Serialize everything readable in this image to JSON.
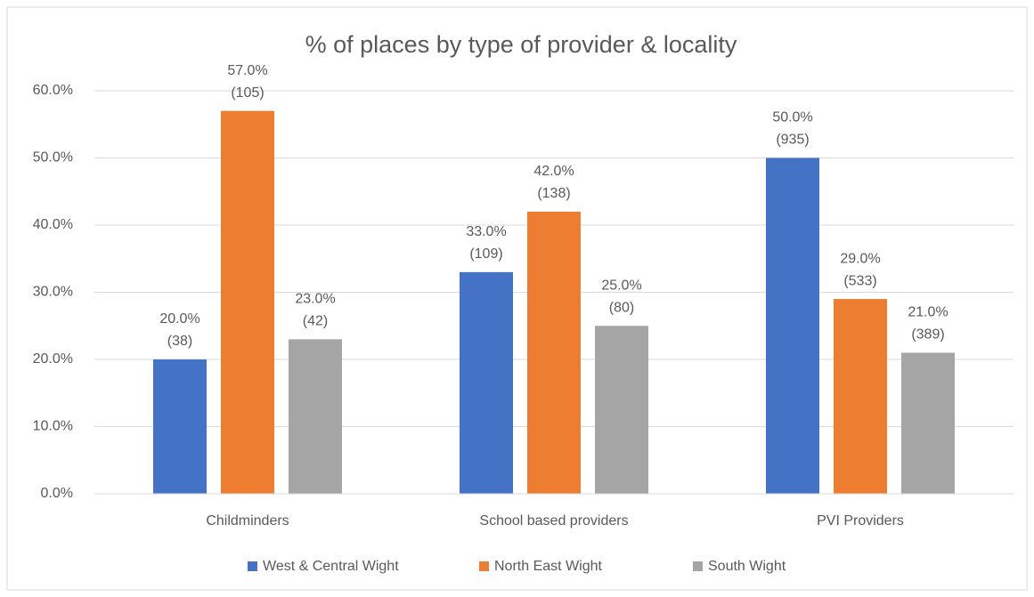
{
  "chart_data": {
    "type": "bar",
    "title": "% of places by type of provider & locality",
    "categories": [
      "Childminders",
      "School based providers",
      "PVI Providers"
    ],
    "series": [
      {
        "name": "West & Central Wight",
        "color": "#4472c4",
        "values": [
          20,
          33,
          50
        ],
        "value_labels": [
          [
            "20.0%",
            "(38)"
          ],
          [
            "33.0%",
            "(109)"
          ],
          [
            "50.0%",
            "(935)"
          ]
        ]
      },
      {
        "name": "North East Wight",
        "color": "#ed7d31",
        "values": [
          57,
          42,
          29
        ],
        "value_labels": [
          [
            "57.0%",
            "(105)"
          ],
          [
            "42.0%",
            "(138)"
          ],
          [
            "29.0%",
            "(533)"
          ]
        ]
      },
      {
        "name": "South Wight",
        "color": "#a5a5a5",
        "values": [
          23,
          25,
          21
        ],
        "value_labels": [
          [
            "23.0%",
            "(42)"
          ],
          [
            "25.0%",
            "(80)"
          ],
          [
            "21.0%",
            "(389)"
          ]
        ]
      }
    ],
    "ylim": [
      0,
      60
    ],
    "yticks": [
      {
        "value": 0,
        "label": "0.0%"
      },
      {
        "value": 10,
        "label": "10.0%"
      },
      {
        "value": 20,
        "label": "20.0%"
      },
      {
        "value": 30,
        "label": "30.0%"
      },
      {
        "value": 40,
        "label": "40.0%"
      },
      {
        "value": 50,
        "label": "50.0%"
      },
      {
        "value": 60,
        "label": "60.0%"
      }
    ],
    "grid": true,
    "legend": "bottom"
  }
}
